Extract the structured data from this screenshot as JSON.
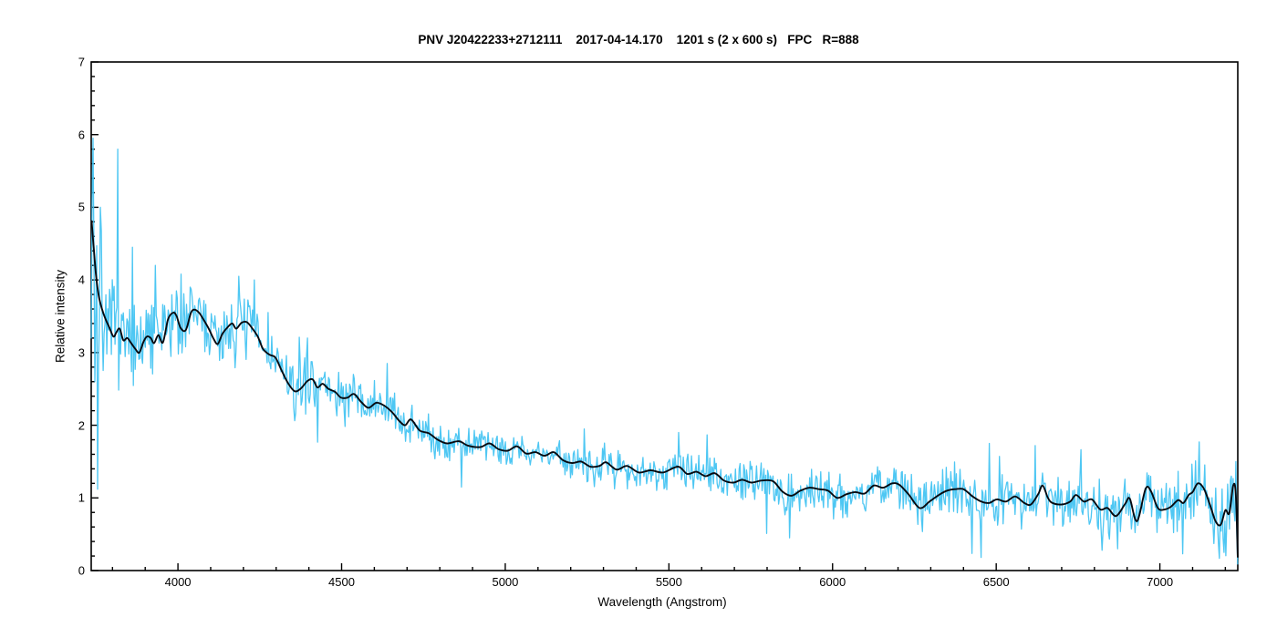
{
  "chart_data": {
    "type": "line",
    "title": "PNV J20422233+2712111    2017-04-14.170    1201 s (2 x 600 s)   FPC   R=888",
    "xlabel": "Wavelength (Angstrom)",
    "ylabel": "Relative intensity",
    "xlim": [
      3735,
      7238
    ],
    "ylim": [
      0,
      7
    ],
    "x_major_ticks": [
      4000,
      4500,
      5000,
      5500,
      6000,
      6500,
      7000
    ],
    "x_minor_step": 100,
    "y_major_ticks": [
      0,
      1,
      2,
      3,
      4,
      5,
      6,
      7
    ],
    "y_minor_step": 0.2,
    "grid": false,
    "legend": "none",
    "axis_color": "#000000",
    "series": [
      {
        "name": "raw-spectrum",
        "color": "#3fc2f2",
        "derived_from": "smoothed-spectrum",
        "noise": {
          "seed": 7,
          "step_angstrom": 2.8,
          "bands": [
            {
              "from": 3735,
              "to": 3775,
              "amp": 1.3
            },
            {
              "from": 3775,
              "to": 3840,
              "amp": 0.65
            },
            {
              "from": 3840,
              "to": 3980,
              "amp": 0.5
            },
            {
              "from": 3980,
              "to": 4250,
              "amp": 0.42
            },
            {
              "from": 4250,
              "to": 4500,
              "amp": 0.33
            },
            {
              "from": 4500,
              "to": 4800,
              "amp": 0.26
            },
            {
              "from": 4800,
              "to": 5300,
              "amp": 0.2
            },
            {
              "from": 5300,
              "to": 5750,
              "amp": 0.24
            },
            {
              "from": 5750,
              "to": 6250,
              "amp": 0.27
            },
            {
              "from": 6250,
              "to": 6750,
              "amp": 0.3
            },
            {
              "from": 6750,
              "to": 7120,
              "amp": 0.36
            },
            {
              "from": 7120,
              "to": 7238,
              "amp": 0.42
            }
          ],
          "spikes": [
            [
              3741,
              5.95
            ],
            [
              3747,
              2.6
            ],
            [
              3754,
              1.12
            ],
            [
              3762,
              5.0
            ],
            [
              3815,
              5.8
            ],
            [
              3862,
              4.45
            ],
            [
              3930,
              4.2
            ],
            [
              4010,
              4.08
            ],
            [
              4185,
              4.05
            ],
            [
              4232,
              4.0
            ],
            [
              4395,
              3.2
            ],
            [
              4640,
              2.85
            ],
            [
              4865,
              1.15
            ],
            [
              5240,
              1.95
            ],
            [
              5530,
              1.9
            ],
            [
              5868,
              0.45
            ],
            [
              6480,
              1.75
            ],
            [
              6620,
              1.72
            ],
            [
              6822,
              0.28
            ],
            [
              6872,
              0.3
            ],
            [
              7120,
              1.77
            ],
            [
              7195,
              0.25
            ],
            [
              7232,
              1.5
            ]
          ]
        }
      },
      {
        "name": "smoothed-spectrum",
        "color": "#070a10",
        "points": [
          [
            3736,
            4.82
          ],
          [
            3743,
            4.42
          ],
          [
            3750,
            4.05
          ],
          [
            3758,
            3.78
          ],
          [
            3768,
            3.6
          ],
          [
            3778,
            3.47
          ],
          [
            3790,
            3.35
          ],
          [
            3803,
            3.22
          ],
          [
            3812,
            3.28
          ],
          [
            3822,
            3.33
          ],
          [
            3833,
            3.17
          ],
          [
            3845,
            3.2
          ],
          [
            3857,
            3.13
          ],
          [
            3870,
            3.05
          ],
          [
            3882,
            3.0
          ],
          [
            3895,
            3.15
          ],
          [
            3905,
            3.22
          ],
          [
            3917,
            3.2
          ],
          [
            3927,
            3.13
          ],
          [
            3940,
            3.24
          ],
          [
            3954,
            3.14
          ],
          [
            3970,
            3.46
          ],
          [
            3986,
            3.55
          ],
          [
            3996,
            3.5
          ],
          [
            4008,
            3.34
          ],
          [
            4024,
            3.31
          ],
          [
            4040,
            3.55
          ],
          [
            4052,
            3.59
          ],
          [
            4066,
            3.54
          ],
          [
            4080,
            3.44
          ],
          [
            4094,
            3.33
          ],
          [
            4110,
            3.18
          ],
          [
            4122,
            3.12
          ],
          [
            4136,
            3.26
          ],
          [
            4152,
            3.35
          ],
          [
            4166,
            3.4
          ],
          [
            4178,
            3.33
          ],
          [
            4194,
            3.41
          ],
          [
            4210,
            3.42
          ],
          [
            4226,
            3.34
          ],
          [
            4244,
            3.22
          ],
          [
            4260,
            3.05
          ],
          [
            4280,
            2.97
          ],
          [
            4298,
            2.93
          ],
          [
            4316,
            2.76
          ],
          [
            4336,
            2.58
          ],
          [
            4356,
            2.47
          ],
          [
            4374,
            2.5
          ],
          [
            4396,
            2.61
          ],
          [
            4412,
            2.63
          ],
          [
            4426,
            2.52
          ],
          [
            4442,
            2.57
          ],
          [
            4460,
            2.5
          ],
          [
            4480,
            2.46
          ],
          [
            4498,
            2.38
          ],
          [
            4518,
            2.38
          ],
          [
            4538,
            2.43
          ],
          [
            4560,
            2.32
          ],
          [
            4582,
            2.24
          ],
          [
            4606,
            2.31
          ],
          [
            4630,
            2.27
          ],
          [
            4654,
            2.18
          ],
          [
            4676,
            2.06
          ],
          [
            4694,
            2.0
          ],
          [
            4712,
            2.08
          ],
          [
            4738,
            1.93
          ],
          [
            4766,
            1.89
          ],
          [
            4794,
            1.8
          ],
          [
            4822,
            1.75
          ],
          [
            4858,
            1.78
          ],
          [
            4886,
            1.72
          ],
          [
            4924,
            1.7
          ],
          [
            4952,
            1.75
          ],
          [
            4980,
            1.67
          ],
          [
            5008,
            1.65
          ],
          [
            5036,
            1.71
          ],
          [
            5064,
            1.61
          ],
          [
            5092,
            1.63
          ],
          [
            5120,
            1.58
          ],
          [
            5148,
            1.63
          ],
          [
            5176,
            1.52
          ],
          [
            5204,
            1.48
          ],
          [
            5232,
            1.5
          ],
          [
            5260,
            1.43
          ],
          [
            5288,
            1.44
          ],
          [
            5308,
            1.49
          ],
          [
            5340,
            1.39
          ],
          [
            5372,
            1.44
          ],
          [
            5408,
            1.35
          ],
          [
            5444,
            1.38
          ],
          [
            5482,
            1.35
          ],
          [
            5528,
            1.43
          ],
          [
            5556,
            1.33
          ],
          [
            5584,
            1.36
          ],
          [
            5612,
            1.3
          ],
          [
            5640,
            1.34
          ],
          [
            5668,
            1.24
          ],
          [
            5696,
            1.21
          ],
          [
            5724,
            1.25
          ],
          [
            5752,
            1.21
          ],
          [
            5784,
            1.24
          ],
          [
            5818,
            1.23
          ],
          [
            5846,
            1.09
          ],
          [
            5874,
            1.03
          ],
          [
            5902,
            1.1
          ],
          [
            5930,
            1.14
          ],
          [
            5958,
            1.12
          ],
          [
            5986,
            1.1
          ],
          [
            6014,
            1.0
          ],
          [
            6042,
            1.05
          ],
          [
            6070,
            1.08
          ],
          [
            6098,
            1.06
          ],
          [
            6126,
            1.17
          ],
          [
            6154,
            1.14
          ],
          [
            6182,
            1.2
          ],
          [
            6204,
            1.18
          ],
          [
            6232,
            1.05
          ],
          [
            6266,
            0.86
          ],
          [
            6296,
            0.95
          ],
          [
            6328,
            1.05
          ],
          [
            6350,
            1.1
          ],
          [
            6374,
            1.12
          ],
          [
            6400,
            1.12
          ],
          [
            6428,
            1.02
          ],
          [
            6454,
            0.95
          ],
          [
            6478,
            0.93
          ],
          [
            6502,
            0.98
          ],
          [
            6530,
            0.95
          ],
          [
            6558,
            1.02
          ],
          [
            6586,
            0.93
          ],
          [
            6606,
            0.91
          ],
          [
            6628,
            1.05
          ],
          [
            6642,
            1.17
          ],
          [
            6658,
            1.0
          ],
          [
            6672,
            0.93
          ],
          [
            6700,
            0.91
          ],
          [
            6726,
            0.95
          ],
          [
            6744,
            1.04
          ],
          [
            6768,
            0.95
          ],
          [
            6792,
            0.98
          ],
          [
            6818,
            0.84
          ],
          [
            6840,
            0.86
          ],
          [
            6866,
            0.75
          ],
          [
            6894,
            0.92
          ],
          [
            6908,
            0.99
          ],
          [
            6930,
            0.68
          ],
          [
            6956,
            1.12
          ],
          [
            6972,
            1.1
          ],
          [
            6994,
            0.86
          ],
          [
            7014,
            0.84
          ],
          [
            7034,
            0.88
          ],
          [
            7056,
            0.97
          ],
          [
            7072,
            0.93
          ],
          [
            7088,
            1.04
          ],
          [
            7100,
            1.08
          ],
          [
            7116,
            1.2
          ],
          [
            7134,
            1.13
          ],
          [
            7152,
            0.92
          ],
          [
            7170,
            0.68
          ],
          [
            7186,
            0.63
          ],
          [
            7200,
            0.83
          ],
          [
            7212,
            0.79
          ],
          [
            7224,
            1.17
          ],
          [
            7232,
            1.05
          ],
          [
            7238,
            0.18
          ]
        ]
      }
    ]
  }
}
